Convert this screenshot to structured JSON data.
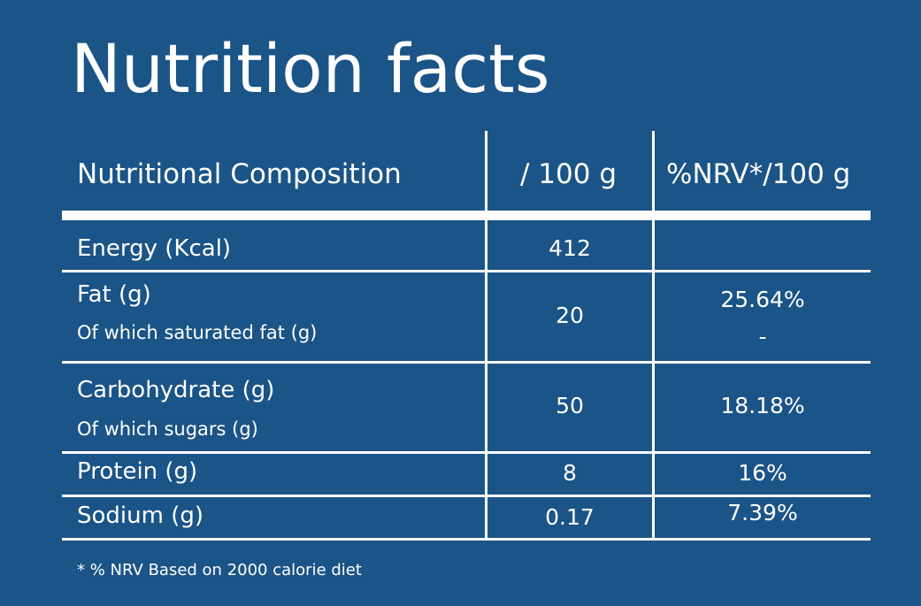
{
  "title": "Nutrition facts",
  "table": {
    "headers": {
      "composition": "Nutritional Composition",
      "per100": "/ 100 g",
      "nrv": "%NRV*/100 g"
    },
    "rows": [
      {
        "label": "Energy (Kcal)",
        "per100": "412",
        "nrv": ""
      },
      {
        "label": "Fat (g)",
        "sublabel": "Of which saturated fat (g)",
        "per100": "20",
        "nrv": "25.64%",
        "nrv_sub": "-"
      },
      {
        "label": "Carbohydrate (g)",
        "sublabel": "Of which sugars (g)",
        "per100": "50",
        "nrv": "18.18%"
      },
      {
        "label": "Protein (g)",
        "per100": "8",
        "nrv": "16%"
      },
      {
        "label": "Sodium (g)",
        "per100": "0.17",
        "nrv": "7.39%"
      }
    ]
  },
  "footnote": "* % NRV Based on 2000 calorie diet",
  "colors": {
    "background": "#1b5487",
    "text": "#ffffff"
  }
}
